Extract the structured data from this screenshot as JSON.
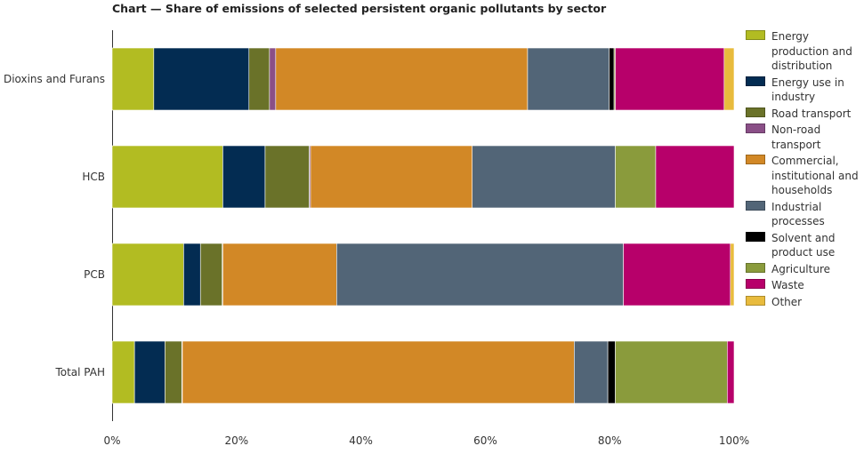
{
  "chart_data": {
    "type": "bar",
    "orientation": "horizontal",
    "stacked": true,
    "title": "Chart — Share of emissions of selected persistent organic pollutants by sector",
    "categories": [
      "Dioxins and Furans",
      "HCB",
      "PCB",
      "Total PAH"
    ],
    "xlim": [
      0,
      100
    ],
    "x_ticks": [
      "0%",
      "20%",
      "40%",
      "60%",
      "80%",
      "100%"
    ],
    "grid": false,
    "legend_position": "right",
    "series": [
      {
        "name": "Energy production and distribution",
        "color": "#b2bc22",
        "values": [
          6.7,
          17.8,
          11.5,
          3.6
        ]
      },
      {
        "name": "Energy use in industry",
        "color": "#032c52",
        "values": [
          15.3,
          6.8,
          2.7,
          4.9
        ]
      },
      {
        "name": "Road transport",
        "color": "#6a7229",
        "values": [
          3.3,
          7.1,
          3.5,
          2.7
        ]
      },
      {
        "name": "Non-road transport",
        "color": "#8a4f87",
        "values": [
          1.0,
          0.2,
          0.1,
          0.1
        ]
      },
      {
        "name": "Commercial, institutional and households",
        "color": "#d28826",
        "values": [
          40.5,
          26.0,
          18.3,
          63.0
        ]
      },
      {
        "name": "Industrial processes",
        "color": "#526577",
        "values": [
          13.1,
          23.0,
          46.1,
          5.4
        ]
      },
      {
        "name": "Solvent and product use",
        "color": "#000000",
        "values": [
          0.8,
          0.0,
          0.0,
          1.2
        ]
      },
      {
        "name": "Agriculture",
        "color": "#8a9b3c",
        "values": [
          0.2,
          6.5,
          0.0,
          18.0
        ]
      },
      {
        "name": "Waste",
        "color": "#b7006a",
        "values": [
          17.5,
          12.6,
          17.2,
          1.1
        ]
      },
      {
        "name": "Other",
        "color": "#e8bb3d",
        "values": [
          1.6,
          0.0,
          0.6,
          0.0
        ]
      }
    ]
  }
}
